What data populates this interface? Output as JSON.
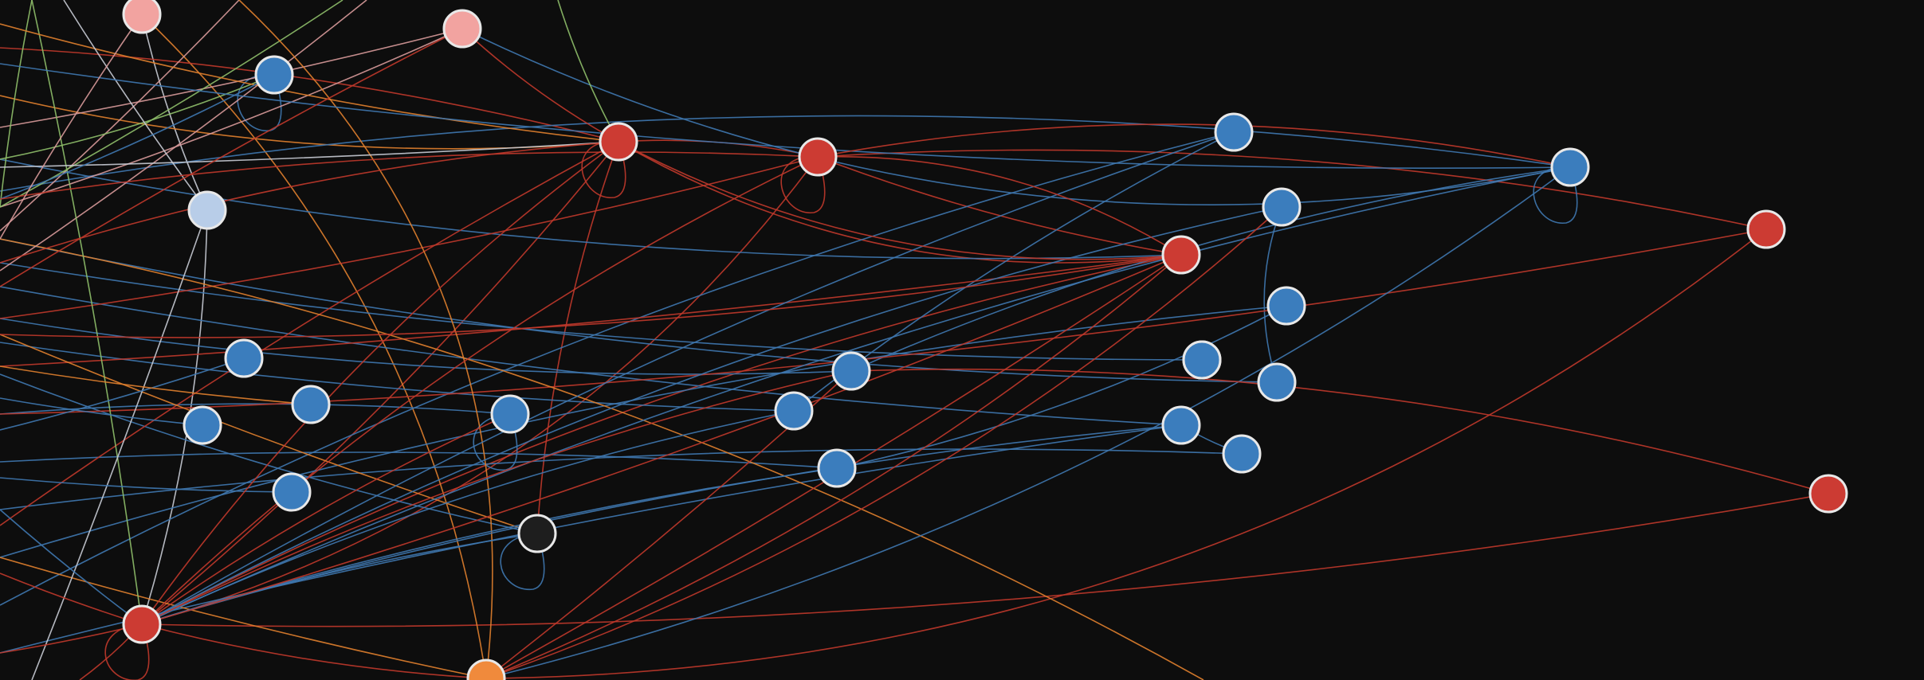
{
  "palette": {
    "background": "#0d0d0d",
    "blue": "#3b7dbd",
    "red": "#cc3b33",
    "pink": "#f2a3a0",
    "lightblue": "#b8cde8",
    "orange": "#f08a3c",
    "black": "#1e1e1e",
    "edge_blue": "#3f78b0",
    "edge_red": "#c0392b",
    "edge_orange": "#e07f2e",
    "edge_green": "#8fbf6a",
    "edge_grey": "#c8cbd4",
    "edge_pink": "#d89a9a"
  },
  "nodes": [
    {
      "id": "pink-top-left",
      "color": "pink"
    },
    {
      "id": "pink-top",
      "color": "pink"
    },
    {
      "id": "blue-a",
      "color": "blue"
    },
    {
      "id": "lightblue-a",
      "color": "lightblue"
    },
    {
      "id": "red-hub-1",
      "color": "red"
    },
    {
      "id": "red-hub-2",
      "color": "red"
    },
    {
      "id": "red-hub-3",
      "color": "red"
    },
    {
      "id": "red-far-right",
      "color": "red"
    },
    {
      "id": "red-right-bottom",
      "color": "red"
    },
    {
      "id": "red-bottom-left",
      "color": "red"
    },
    {
      "id": "orange-bottom",
      "color": "orange"
    },
    {
      "id": "black-a",
      "color": "black"
    },
    {
      "id": "blue-b",
      "color": "blue"
    },
    {
      "id": "blue-c",
      "color": "blue"
    },
    {
      "id": "blue-d",
      "color": "blue"
    },
    {
      "id": "blue-e",
      "color": "blue"
    },
    {
      "id": "blue-f",
      "color": "blue"
    },
    {
      "id": "blue-g",
      "color": "blue"
    },
    {
      "id": "blue-h",
      "color": "blue"
    },
    {
      "id": "blue-i",
      "color": "blue"
    },
    {
      "id": "blue-j",
      "color": "blue"
    },
    {
      "id": "blue-k",
      "color": "blue"
    },
    {
      "id": "blue-l",
      "color": "blue"
    },
    {
      "id": "blue-m",
      "color": "blue"
    },
    {
      "id": "blue-n",
      "color": "blue"
    },
    {
      "id": "blue-o",
      "color": "blue"
    },
    {
      "id": "blue-p",
      "color": "blue"
    },
    {
      "id": "blue-q",
      "color": "blue"
    },
    {
      "id": "blue-far",
      "color": "blue"
    }
  ],
  "edges": [
    {
      "from": "red-hub-1",
      "to": "red-hub-2",
      "color": "edge_red"
    },
    {
      "from": "red-hub-2",
      "to": "red-hub-3",
      "color": "edge_red"
    },
    {
      "from": "red-hub-1",
      "to": "red-hub-3",
      "color": "edge_red"
    },
    {
      "from": "red-hub-2",
      "to": "red-far-right",
      "color": "edge_red"
    },
    {
      "from": "red-bottom-left",
      "to": "red-hub-1",
      "color": "edge_red"
    },
    {
      "from": "red-bottom-left",
      "to": "red-hub-2",
      "color": "edge_red"
    },
    {
      "from": "red-bottom-left",
      "to": "red-hub-3",
      "color": "edge_red"
    },
    {
      "from": "red-bottom-left",
      "to": "red-right-bottom",
      "color": "edge_red"
    },
    {
      "from": "orange-bottom",
      "to": "red-far-right",
      "color": "edge_red"
    },
    {
      "from": "blue-i",
      "to": "blue-far",
      "color": "edge_blue"
    },
    {
      "from": "blue-j",
      "to": "blue-g",
      "color": "edge_blue"
    },
    {
      "from": "blue-k",
      "to": "blue-n",
      "color": "edge_blue"
    },
    {
      "from": "blue-l",
      "to": "blue-h",
      "color": "edge_blue"
    },
    {
      "from": "blue-p",
      "to": "blue-q",
      "color": "edge_blue"
    },
    {
      "from": "pink-top",
      "to": "blue-far",
      "color": "edge_blue"
    },
    {
      "from": "lightblue-a",
      "to": "red-bottom-left",
      "color": "edge_grey"
    },
    {
      "from": "pink-top-left",
      "to": "lightblue-a",
      "color": "edge_grey"
    },
    {
      "from": "orange-bottom",
      "to": "pink-top-left",
      "color": "edge_orange"
    },
    {
      "from": "black-a",
      "to": "red-hub-1",
      "color": "edge_red"
    }
  ]
}
